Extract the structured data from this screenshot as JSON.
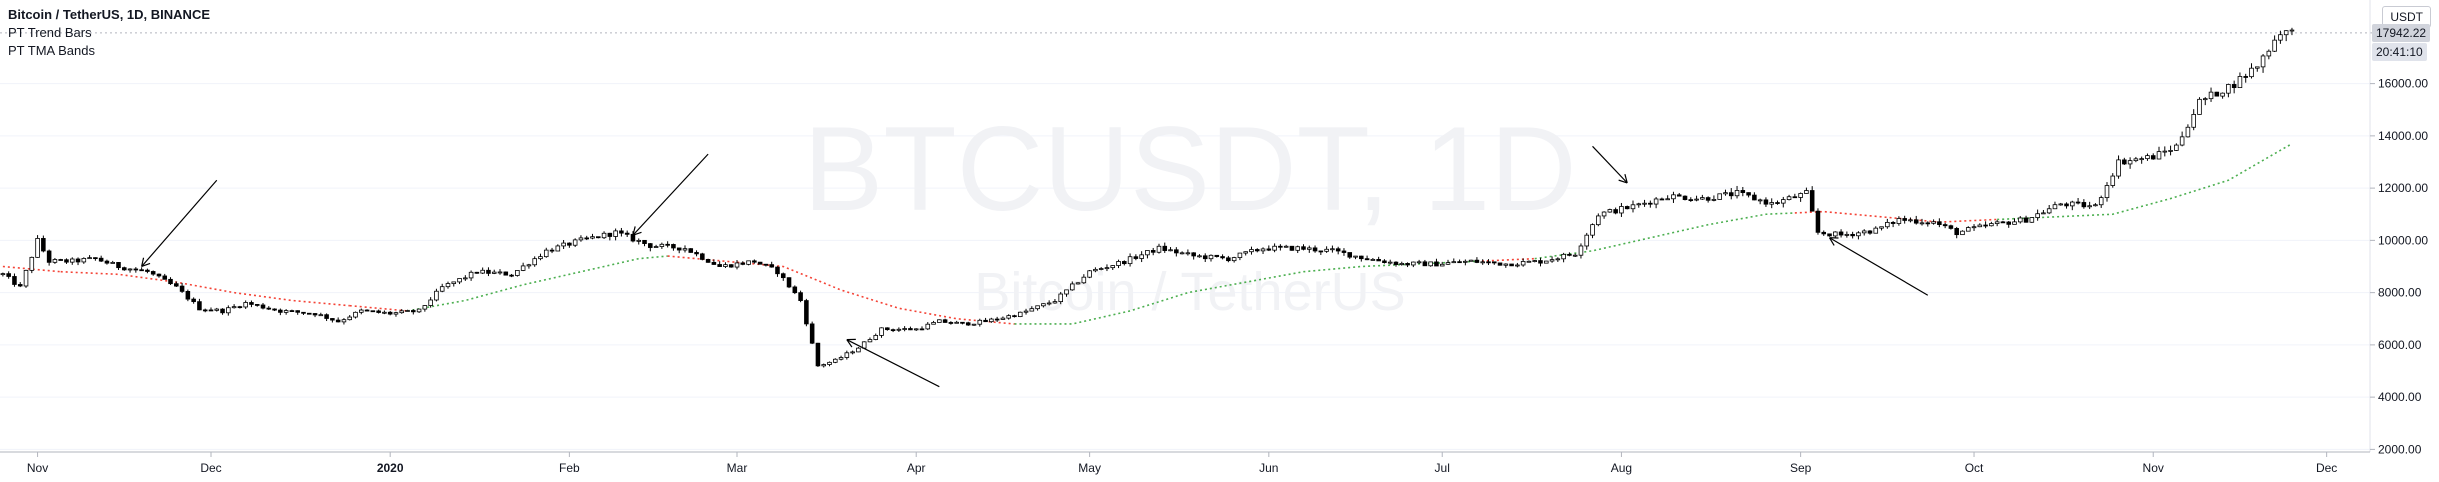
{
  "legend": {
    "symbol_line": "Bitcoin / TetherUS, 1D, BINANCE",
    "indicator1": "PT Trend Bars",
    "indicator2": "PT TMA Bands"
  },
  "currency": "USDT",
  "watermark": {
    "ticker": "BTCUSDT, 1D",
    "name": "Bitcoin / TetherUS"
  },
  "last_price_label": "17942.22",
  "countdown_label": "20:41:10",
  "colors": {
    "candle": "#000000",
    "band_up": "#4caf50",
    "band_down": "#f44336",
    "grid": "#e0e3eb",
    "text": "#131722"
  },
  "chart_data": {
    "type": "candlestick",
    "y_axis": {
      "ticks": [
        2000,
        4000,
        6000,
        8000,
        10000,
        12000,
        14000,
        16000
      ],
      "tick_labels": [
        "2000.00",
        "4000.00",
        "6000.00",
        "8000.00",
        "10000.00",
        "12000.00",
        "14000.00",
        "16000.00"
      ],
      "ylim": [
        1900,
        19200
      ]
    },
    "x_axis": {
      "labels": [
        "Nov",
        "Dec",
        "2020",
        "Feb",
        "Mar",
        "Apr",
        "May",
        "Jun",
        "Jul",
        "Aug",
        "Sep",
        "Oct",
        "Nov",
        "Dec"
      ],
      "bold": [
        "2020"
      ],
      "day_index": [
        6,
        36,
        67,
        98,
        127,
        158,
        188,
        219,
        249,
        280,
        311,
        341,
        372,
        402
      ]
    },
    "num_days": 410,
    "price_path": [
      [
        0,
        8700
      ],
      [
        3,
        8200
      ],
      [
        5,
        9400
      ],
      [
        6,
        10000
      ],
      [
        8,
        9200
      ],
      [
        12,
        9200
      ],
      [
        16,
        9300
      ],
      [
        20,
        9000
      ],
      [
        25,
        8800
      ],
      [
        30,
        8200
      ],
      [
        34,
        7400
      ],
      [
        38,
        7300
      ],
      [
        42,
        7600
      ],
      [
        48,
        7300
      ],
      [
        54,
        7200
      ],
      [
        58,
        6900
      ],
      [
        62,
        7300
      ],
      [
        67,
        7200
      ],
      [
        72,
        7300
      ],
      [
        76,
        8200
      ],
      [
        82,
        8800
      ],
      [
        88,
        8700
      ],
      [
        94,
        9600
      ],
      [
        100,
        10000
      ],
      [
        106,
        10300
      ],
      [
        112,
        9800
      ],
      [
        118,
        9700
      ],
      [
        124,
        9000
      ],
      [
        130,
        9200
      ],
      [
        134,
        8800
      ],
      [
        138,
        7700
      ],
      [
        141,
        5200
      ],
      [
        144,
        5400
      ],
      [
        148,
        5900
      ],
      [
        152,
        6600
      ],
      [
        158,
        6600
      ],
      [
        162,
        6900
      ],
      [
        166,
        6800
      ],
      [
        170,
        6900
      ],
      [
        176,
        7200
      ],
      [
        182,
        7700
      ],
      [
        188,
        8800
      ],
      [
        194,
        9200
      ],
      [
        200,
        9700
      ],
      [
        206,
        9400
      ],
      [
        212,
        9300
      ],
      [
        218,
        9700
      ],
      [
        224,
        9700
      ],
      [
        230,
        9600
      ],
      [
        236,
        9300
      ],
      [
        242,
        9100
      ],
      [
        248,
        9100
      ],
      [
        254,
        9200
      ],
      [
        260,
        9100
      ],
      [
        266,
        9200
      ],
      [
        272,
        9500
      ],
      [
        276,
        11000
      ],
      [
        282,
        11300
      ],
      [
        288,
        11700
      ],
      [
        294,
        11600
      ],
      [
        300,
        11800
      ],
      [
        306,
        11400
      ],
      [
        312,
        11800
      ],
      [
        314,
        10300
      ],
      [
        318,
        10200
      ],
      [
        324,
        10400
      ],
      [
        328,
        10800
      ],
      [
        334,
        10700
      ],
      [
        338,
        10300
      ],
      [
        344,
        10600
      ],
      [
        350,
        10800
      ],
      [
        356,
        11400
      ],
      [
        362,
        11300
      ],
      [
        366,
        13000
      ],
      [
        372,
        13200
      ],
      [
        376,
        13600
      ],
      [
        380,
        15300
      ],
      [
        386,
        16000
      ],
      [
        390,
        16700
      ],
      [
        394,
        18000
      ],
      [
        396,
        17942
      ]
    ],
    "band_path": [
      [
        0,
        9000
      ],
      [
        10,
        8800
      ],
      [
        20,
        8700
      ],
      [
        30,
        8400
      ],
      [
        40,
        8000
      ],
      [
        50,
        7700
      ],
      [
        60,
        7500
      ],
      [
        70,
        7300
      ],
      [
        80,
        7700
      ],
      [
        90,
        8300
      ],
      [
        100,
        8800
      ],
      [
        110,
        9300
      ],
      [
        115,
        9400
      ],
      [
        125,
        9200
      ],
      [
        135,
        9000
      ],
      [
        145,
        8100
      ],
      [
        155,
        7400
      ],
      [
        165,
        7000
      ],
      [
        175,
        6800
      ],
      [
        185,
        6800
      ],
      [
        195,
        7300
      ],
      [
        205,
        8000
      ],
      [
        215,
        8400
      ],
      [
        225,
        8800
      ],
      [
        235,
        9000
      ],
      [
        245,
        9100
      ],
      [
        255,
        9200
      ],
      [
        265,
        9300
      ],
      [
        275,
        9600
      ],
      [
        285,
        10100
      ],
      [
        295,
        10600
      ],
      [
        305,
        11000
      ],
      [
        315,
        11100
      ],
      [
        325,
        10900
      ],
      [
        335,
        10700
      ],
      [
        345,
        10800
      ],
      [
        355,
        10900
      ],
      [
        365,
        11000
      ],
      [
        375,
        11600
      ],
      [
        385,
        12300
      ],
      [
        396,
        13700
      ]
    ],
    "band_color_segments": [
      {
        "from": 0,
        "to": 10,
        "trend": "down"
      },
      {
        "from": 10,
        "to": 60,
        "trend": "down"
      },
      {
        "from": 60,
        "to": 70,
        "trend": "down"
      },
      {
        "from": 70,
        "to": 115,
        "trend": "up"
      },
      {
        "from": 115,
        "to": 175,
        "trend": "down"
      },
      {
        "from": 175,
        "to": 255,
        "trend": "up"
      },
      {
        "from": 255,
        "to": 265,
        "trend": "down"
      },
      {
        "from": 265,
        "to": 310,
        "trend": "up"
      },
      {
        "from": 310,
        "to": 345,
        "trend": "down"
      },
      {
        "from": 345,
        "to": 396,
        "trend": "up"
      }
    ],
    "annotation_arrows": [
      {
        "from": [
          37,
          12300
        ],
        "to": [
          24,
          9000
        ]
      },
      {
        "from": [
          122,
          13300
        ],
        "to": [
          109,
          10200
        ]
      },
      {
        "from": [
          162,
          4400
        ],
        "to": [
          146,
          6200
        ]
      },
      {
        "from": [
          275,
          13600
        ],
        "to": [
          281,
          12200
        ]
      },
      {
        "from": [
          333,
          7900
        ],
        "to": [
          316,
          10100
        ]
      }
    ]
  }
}
